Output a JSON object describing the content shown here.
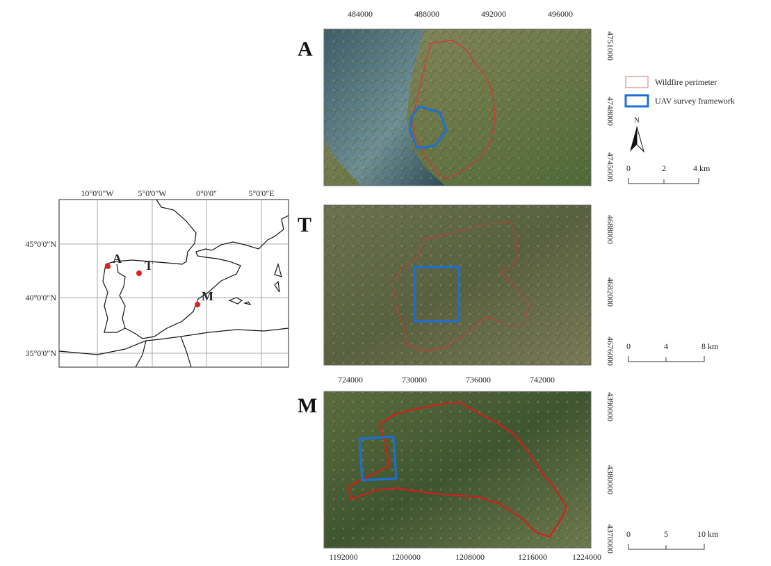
{
  "overview": {
    "xticks": [
      "10°0'0\"W",
      "5°0'0\"W",
      "0°0'0\"",
      "5°0'0\"E"
    ],
    "yticks": [
      "45°0'0\"N",
      "40°0'0\"N",
      "35°0'0\"N"
    ],
    "sites": [
      "A",
      "T",
      "M"
    ]
  },
  "panels": [
    {
      "label": "A",
      "xticks": [
        "484000",
        "488000",
        "492000",
        "496000"
      ],
      "yticks": [
        "4751000",
        "4748000",
        "4745000"
      ],
      "scale": [
        "0",
        "2",
        "4 km"
      ]
    },
    {
      "label": "T",
      "xticks": [
        "724000",
        "730000",
        "736000",
        "742000"
      ],
      "yticks": [
        "4688000",
        "4682000",
        "4676000"
      ],
      "scale": [
        "0",
        "4",
        "8 km"
      ]
    },
    {
      "label": "M",
      "xticks": [
        "1192000",
        "1200000",
        "1208000",
        "1216000",
        "1224000"
      ],
      "yticks": [
        "4390000",
        "4380000",
        "4370000"
      ],
      "scale": [
        "0",
        "5",
        "10 km"
      ]
    }
  ],
  "legend": [
    "Wildfire perimeter",
    "UAV survey framework"
  ],
  "north": "N"
}
